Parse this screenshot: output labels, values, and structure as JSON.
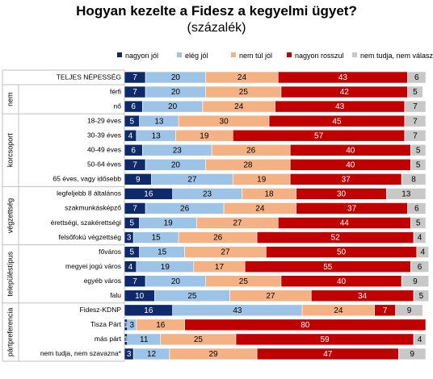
{
  "title": "Hogyan kezelte a Fidesz a kegyelmi ügyet?",
  "subtitle": "(százalék)",
  "chart_data": {
    "type": "bar",
    "stacked": true,
    "orientation": "horizontal",
    "percent": true,
    "xlim": [
      0,
      100
    ],
    "legend_position": "top",
    "series": [
      {
        "name": "nagyon jól",
        "color": "#0f2a6b",
        "label_color": "#ffffff"
      },
      {
        "name": "elég jól",
        "color": "#9dc3e6",
        "label_color": "#000000"
      },
      {
        "name": "nem túl jól",
        "color": "#f4b183",
        "label_color": "#000000"
      },
      {
        "name": "nagyon rosszul",
        "color": "#c00000",
        "label_color": "#ffffff"
      },
      {
        "name": "nem tudja, nem válaszol",
        "color": "#c8c8c8",
        "label_color": "#000000"
      }
    ],
    "groups": [
      {
        "label": "",
        "rows": [
          {
            "label": "TELJES NÉPESSÉG",
            "values": [
              7,
              20,
              24,
              43,
              6
            ]
          }
        ]
      },
      {
        "label": "nem",
        "rows": [
          {
            "label": "férfi",
            "values": [
              7,
              20,
              25,
              42,
              5
            ]
          },
          {
            "label": "nő",
            "values": [
              6,
              20,
              24,
              43,
              7
            ]
          }
        ]
      },
      {
        "label": "korcsoport",
        "rows": [
          {
            "label": "18-29 éves",
            "values": [
              5,
              13,
              30,
              45,
              7
            ]
          },
          {
            "label": "30-39 éves",
            "values": [
              4,
              13,
              19,
              57,
              7
            ]
          },
          {
            "label": "40-49 éves",
            "values": [
              6,
              23,
              26,
              40,
              5
            ]
          },
          {
            "label": "50-64 éves",
            "values": [
              7,
              20,
              28,
              40,
              5
            ]
          },
          {
            "label": "65 éves, vagy idősebb",
            "values": [
              9,
              27,
              19,
              37,
              8
            ]
          }
        ]
      },
      {
        "label": "végzettség",
        "rows": [
          {
            "label": "legfeljebb 8 általános",
            "values": [
              16,
              23,
              18,
              30,
              13
            ]
          },
          {
            "label": "szakmunkásképző",
            "values": [
              7,
              26,
              24,
              37,
              6
            ]
          },
          {
            "label": "érettségi, szakérettségi",
            "values": [
              5,
              19,
              27,
              44,
              5
            ]
          },
          {
            "label": "felsőfokú végzettség",
            "values": [
              3,
              15,
              26,
              52,
              4
            ]
          }
        ]
      },
      {
        "label": "településtípus",
        "rows": [
          {
            "label": "főváros",
            "values": [
              5,
              15,
              27,
              50,
              4
            ]
          },
          {
            "label": "megyei jogú város",
            "values": [
              4,
              19,
              17,
              55,
              6
            ]
          },
          {
            "label": "egyéb város",
            "values": [
              7,
              20,
              25,
              40,
              9
            ]
          },
          {
            "label": "falu",
            "values": [
              10,
              25,
              27,
              34,
              5
            ]
          }
        ]
      },
      {
        "label": "pártpreferencia",
        "rows": [
          {
            "label": "Fidesz-KDNP",
            "values": [
              16,
              43,
              24,
              7,
              9
            ]
          },
          {
            "label": "Tisza Párt",
            "values": [
              1,
              3,
              16,
              80,
              0
            ]
          },
          {
            "label": "más párt",
            "values": [
              1,
              11,
              25,
              59,
              4
            ]
          },
          {
            "label": "nem tudja, nem szavazna*",
            "values": [
              3,
              12,
              29,
              47,
              9
            ]
          }
        ]
      }
    ]
  }
}
